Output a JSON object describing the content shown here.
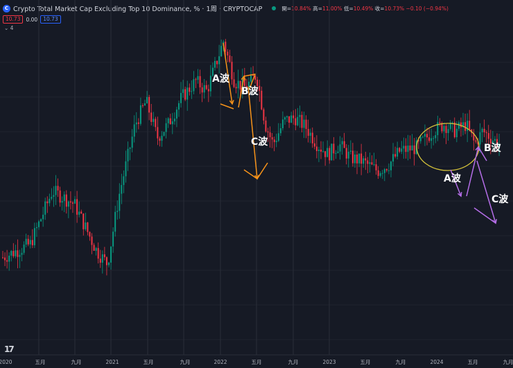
{
  "header": {
    "title": "Crypto Total Market Cap Excluding Top 10 Dominance, % · 1周 · CRYPTOCAP",
    "ohlc": [
      {
        "label": "開=",
        "value": "10.84%"
      },
      {
        "label": "高=",
        "value": "11.00%"
      },
      {
        "label": "低=",
        "value": "10.49%"
      },
      {
        "label": "收=",
        "value": "10.73%"
      },
      {
        "label": "",
        "value": "−0.10 (−0.94%)"
      }
    ],
    "price_box": "10.73",
    "zero_value": "0.00",
    "price_box2": "10.73",
    "indicator_toggle": "⌄ 4",
    "tv_logo": "17"
  },
  "colors": {
    "background": "#161a25",
    "grid": "#2a2e39",
    "up": "#089981",
    "down": "#f23645",
    "wave_past": "#f7931a",
    "wave_forecast": "#b56ee8",
    "circle": "#d4c23a"
  },
  "chart_data": {
    "type": "candlestick",
    "title": "Crypto Total Market Cap Excluding Top 10 Dominance, %",
    "interval": "1周",
    "x_ticks": [
      "2020",
      "五月",
      "九月",
      "2021",
      "五月",
      "九月",
      "2022",
      "五月",
      "九月",
      "2023",
      "五月",
      "九月",
      "2024",
      "五月",
      "九月"
    ],
    "annotations": [
      {
        "text": "A波",
        "group": "past"
      },
      {
        "text": "B波",
        "group": "past"
      },
      {
        "text": "C波",
        "group": "past"
      },
      {
        "text": "A波",
        "group": "forecast"
      },
      {
        "text": "B波",
        "group": "forecast"
      },
      {
        "text": "C波",
        "group": "forecast"
      }
    ],
    "y_scale": "hidden",
    "close_path": [
      [
        2020.0,
        6.2
      ],
      [
        2020.25,
        6.6
      ],
      [
        2020.45,
        8.2
      ],
      [
        2020.65,
        7.8
      ],
      [
        2020.85,
        6.4
      ],
      [
        2020.95,
        6.0
      ],
      [
        2021.05,
        8.0
      ],
      [
        2021.2,
        10.2
      ],
      [
        2021.3,
        10.9
      ],
      [
        2021.4,
        9.8
      ],
      [
        2021.5,
        10.2
      ],
      [
        2021.62,
        11.0
      ],
      [
        2021.75,
        11.5
      ],
      [
        2021.85,
        11.2
      ],
      [
        2022.0,
        12.7
      ],
      [
        2022.1,
        11.5
      ],
      [
        2022.2,
        11.3
      ],
      [
        2022.3,
        11.7
      ],
      [
        2022.38,
        10.2
      ],
      [
        2022.45,
        9.6
      ],
      [
        2022.55,
        10.3
      ],
      [
        2022.65,
        10.4
      ],
      [
        2022.75,
        10.1
      ],
      [
        2022.85,
        9.6
      ],
      [
        2022.95,
        9.3
      ],
      [
        2023.05,
        9.6
      ],
      [
        2023.15,
        9.2
      ],
      [
        2023.25,
        9.1
      ],
      [
        2023.4,
        8.8
      ],
      [
        2023.5,
        9.0
      ],
      [
        2023.6,
        9.4
      ],
      [
        2023.75,
        9.5
      ],
      [
        2023.9,
        10.0
      ],
      [
        2024.0,
        10.2
      ],
      [
        2024.1,
        10.0
      ],
      [
        2024.2,
        10.2
      ],
      [
        2024.28,
        9.6
      ],
      [
        2024.35,
        10.0
      ],
      [
        2024.5,
        9.6
      ]
    ]
  }
}
